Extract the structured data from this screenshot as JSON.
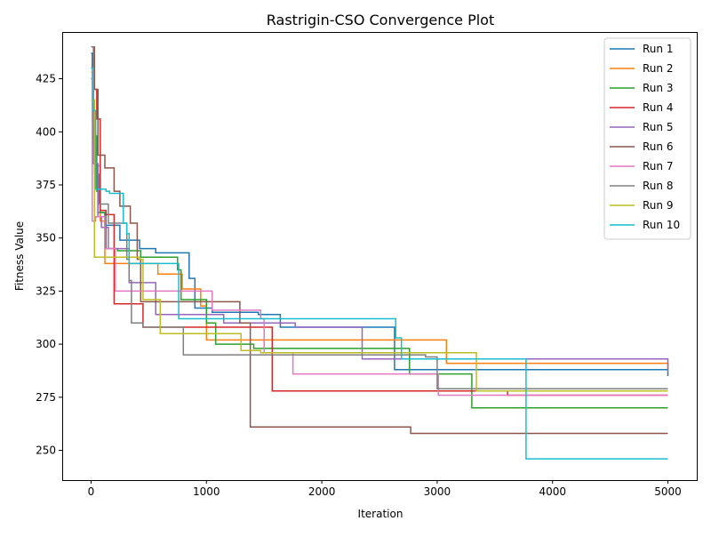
{
  "chart_data": {
    "type": "line",
    "title": "Rastrigin-CSO Convergence Plot",
    "xlabel": "Iteration",
    "ylabel": "Fitness Value",
    "xlim": [
      -250,
      5250
    ],
    "ylim": [
      236,
      447
    ],
    "xticks": [
      0,
      1000,
      2000,
      3000,
      4000,
      5000
    ],
    "yticks": [
      250,
      275,
      300,
      325,
      350,
      375,
      400,
      425
    ],
    "legend_position": "top-right",
    "grid": false,
    "step": "post",
    "series": [
      {
        "name": "Run 1",
        "color": "#1f77b4",
        "points": [
          [
            0,
            437
          ],
          [
            10,
            405
          ],
          [
            30,
            380
          ],
          [
            60,
            362
          ],
          [
            120,
            356
          ],
          [
            250,
            349
          ],
          [
            350,
            349
          ],
          [
            420,
            345
          ],
          [
            560,
            343
          ],
          [
            850,
            331
          ],
          [
            900,
            317
          ],
          [
            1050,
            315
          ],
          [
            1450,
            314
          ],
          [
            1640,
            308
          ],
          [
            2630,
            288
          ],
          [
            5000,
            288
          ],
          [
            5000,
            285
          ]
        ]
      },
      {
        "name": "Run 2",
        "color": "#ff7f0e",
        "points": [
          [
            0,
            428
          ],
          [
            20,
            400
          ],
          [
            40,
            384
          ],
          [
            80,
            358
          ],
          [
            120,
            338
          ],
          [
            250,
            338
          ],
          [
            350,
            338
          ],
          [
            580,
            333
          ],
          [
            790,
            326
          ],
          [
            950,
            318
          ],
          [
            1000,
            302
          ],
          [
            1560,
            302
          ],
          [
            3080,
            291
          ],
          [
            5000,
            291
          ],
          [
            5000,
            288
          ]
        ]
      },
      {
        "name": "Run 3",
        "color": "#2ca02c",
        "points": [
          [
            0,
            425
          ],
          [
            20,
            398
          ],
          [
            50,
            372
          ],
          [
            80,
            362
          ],
          [
            130,
            345
          ],
          [
            230,
            344
          ],
          [
            430,
            341
          ],
          [
            750,
            335
          ],
          [
            780,
            321
          ],
          [
            1000,
            310
          ],
          [
            1080,
            300
          ],
          [
            1410,
            298
          ],
          [
            2760,
            286
          ],
          [
            3300,
            270
          ],
          [
            5000,
            270
          ]
        ]
      },
      {
        "name": "Run 4",
        "color": "#d62728",
        "points": [
          [
            0,
            430
          ],
          [
            30,
            420
          ],
          [
            50,
            406
          ],
          [
            80,
            363
          ],
          [
            130,
            361
          ],
          [
            200,
            319
          ],
          [
            300,
            319
          ],
          [
            450,
            308
          ],
          [
            700,
            308
          ],
          [
            1570,
            278
          ],
          [
            3610,
            276
          ],
          [
            5000,
            276
          ]
        ]
      },
      {
        "name": "Run 5",
        "color": "#9467bd",
        "points": [
          [
            0,
            425
          ],
          [
            20,
            385
          ],
          [
            60,
            360
          ],
          [
            90,
            355
          ],
          [
            150,
            345
          ],
          [
            330,
            329
          ],
          [
            560,
            314
          ],
          [
            1150,
            310
          ],
          [
            1770,
            308
          ],
          [
            2350,
            293
          ],
          [
            5000,
            293
          ],
          [
            5000,
            287
          ]
        ]
      },
      {
        "name": "Run 6",
        "color": "#8c564b",
        "points": [
          [
            0,
            440
          ],
          [
            30,
            420
          ],
          [
            60,
            389
          ],
          [
            120,
            383
          ],
          [
            200,
            372
          ],
          [
            250,
            365
          ],
          [
            340,
            357
          ],
          [
            400,
            340
          ],
          [
            430,
            320
          ],
          [
            1290,
            310
          ],
          [
            1380,
            261
          ],
          [
            2770,
            258
          ],
          [
            5000,
            258
          ]
        ]
      },
      {
        "name": "Run 7",
        "color": "#e377c2",
        "points": [
          [
            0,
            430
          ],
          [
            10,
            358
          ],
          [
            40,
            360
          ],
          [
            120,
            345
          ],
          [
            210,
            325
          ],
          [
            1050,
            316
          ],
          [
            1470,
            312
          ],
          [
            1500,
            296
          ],
          [
            1750,
            286
          ],
          [
            3010,
            276
          ],
          [
            5000,
            276
          ]
        ]
      },
      {
        "name": "Run 8",
        "color": "#7f7f7f",
        "points": [
          [
            0,
            440
          ],
          [
            20,
            395
          ],
          [
            40,
            380
          ],
          [
            70,
            366
          ],
          [
            150,
            357
          ],
          [
            310,
            340
          ],
          [
            330,
            330
          ],
          [
            350,
            310
          ],
          [
            450,
            308
          ],
          [
            800,
            295
          ],
          [
            2380,
            295
          ],
          [
            2900,
            294
          ],
          [
            3000,
            279
          ],
          [
            5000,
            279
          ]
        ]
      },
      {
        "name": "Run 9",
        "color": "#bcbd22",
        "points": [
          [
            0,
            415
          ],
          [
            30,
            341
          ],
          [
            120,
            341
          ],
          [
            420,
            340
          ],
          [
            450,
            321
          ],
          [
            600,
            305
          ],
          [
            1300,
            297
          ],
          [
            1470,
            296
          ],
          [
            3340,
            278
          ],
          [
            5000,
            278
          ]
        ]
      },
      {
        "name": "Run 10",
        "color": "#17becf",
        "points": [
          [
            0,
            430
          ],
          [
            20,
            410
          ],
          [
            40,
            373
          ],
          [
            130,
            372
          ],
          [
            160,
            371
          ],
          [
            280,
            357
          ],
          [
            310,
            352
          ],
          [
            330,
            338
          ],
          [
            760,
            312
          ],
          [
            2640,
            303
          ],
          [
            2690,
            293
          ],
          [
            3770,
            246
          ],
          [
            5000,
            246
          ]
        ]
      }
    ]
  }
}
